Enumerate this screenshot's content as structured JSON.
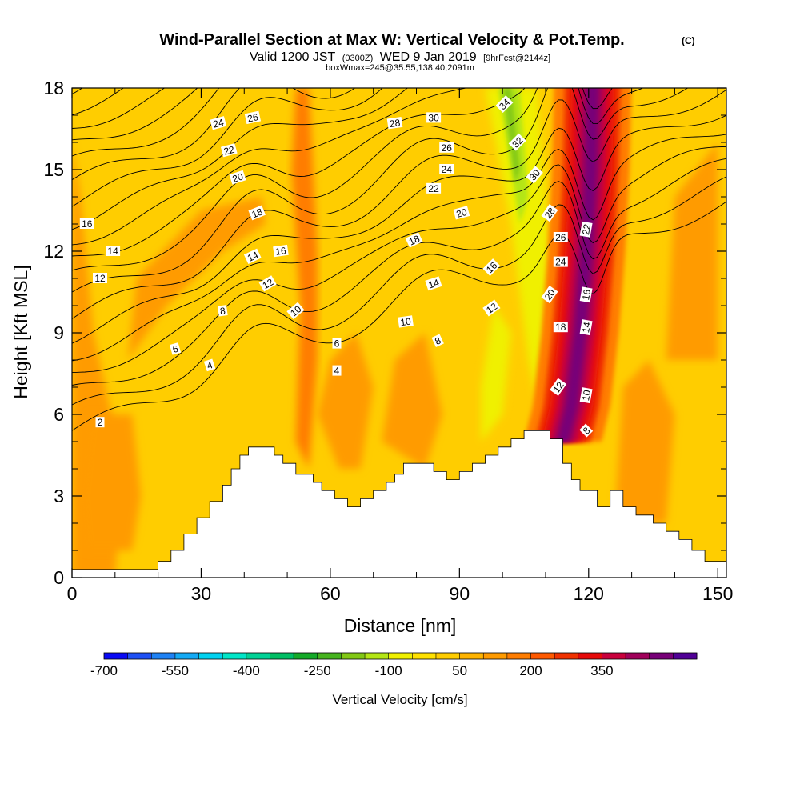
{
  "chart_data": {
    "type": "heatmap",
    "title": "Wind-Parallel Section at Max W: Vertical Velocity & Pot.Temp.",
    "copyright": "(C)",
    "subtitle": {
      "valid": "Valid 1200 JST",
      "utc": "(0300Z)",
      "date": "WED 9 Jan 2019",
      "fcst": "[9hrFcst@2144z]"
    },
    "box_info": "boxWmax=245@35.55,138.40,2091m",
    "xlabel": "Distance [nm]",
    "ylabel": "Height [Kft MSL]",
    "xlim": [
      0,
      152
    ],
    "ylim": [
      0,
      18
    ],
    "xticks": [
      0,
      30,
      60,
      90,
      120,
      150
    ],
    "yticks": [
      0,
      3,
      6,
      9,
      12,
      15,
      18
    ],
    "colorbar": {
      "label": "Vertical Velocity [cm/s]",
      "tick_labels": [
        "-700",
        "-550",
        "-400",
        "-250",
        "-100",
        "50",
        "200",
        "350"
      ],
      "colors": [
        "#0a0af5",
        "#1e50f5",
        "#1e82f5",
        "#14aaf5",
        "#00d2f0",
        "#00e6c8",
        "#00d296",
        "#00be64",
        "#14aa28",
        "#46b41e",
        "#82c814",
        "#b4e614",
        "#f0f000",
        "#ffe100",
        "#ffcd00",
        "#ffb400",
        "#ff9b00",
        "#ff7d00",
        "#ff5a00",
        "#f03200",
        "#e60a0a",
        "#c8003c",
        "#a0005a",
        "#780078",
        "#500096"
      ]
    },
    "terrain_height_kft": [
      [
        0,
        0.3
      ],
      [
        20,
        0.3
      ],
      [
        20,
        0.6
      ],
      [
        23,
        0.6
      ],
      [
        23,
        1.0
      ],
      [
        26,
        1.0
      ],
      [
        26,
        1.6
      ],
      [
        29,
        1.6
      ],
      [
        29,
        2.2
      ],
      [
        32,
        2.2
      ],
      [
        32,
        2.8
      ],
      [
        35,
        2.8
      ],
      [
        35,
        3.4
      ],
      [
        37,
        3.4
      ],
      [
        37,
        4.0
      ],
      [
        39,
        4.0
      ],
      [
        39,
        4.5
      ],
      [
        41,
        4.5
      ],
      [
        41,
        4.8
      ],
      [
        47,
        4.8
      ],
      [
        47,
        4.5
      ],
      [
        49,
        4.5
      ],
      [
        49,
        4.2
      ],
      [
        52,
        4.2
      ],
      [
        52,
        3.8
      ],
      [
        56,
        3.8
      ],
      [
        56,
        3.5
      ],
      [
        58,
        3.5
      ],
      [
        58,
        3.2
      ],
      [
        61,
        3.2
      ],
      [
        61,
        2.9
      ],
      [
        64,
        2.9
      ],
      [
        64,
        2.6
      ],
      [
        67,
        2.6
      ],
      [
        67,
        2.9
      ],
      [
        70,
        2.9
      ],
      [
        70,
        3.2
      ],
      [
        73,
        3.2
      ],
      [
        73,
        3.5
      ],
      [
        75,
        3.5
      ],
      [
        75,
        3.8
      ],
      [
        77,
        3.8
      ],
      [
        77,
        4.2
      ],
      [
        84,
        4.2
      ],
      [
        84,
        3.9
      ],
      [
        87,
        3.9
      ],
      [
        87,
        3.6
      ],
      [
        90,
        3.6
      ],
      [
        90,
        3.9
      ],
      [
        93,
        3.9
      ],
      [
        93,
        4.2
      ],
      [
        96,
        4.2
      ],
      [
        96,
        4.5
      ],
      [
        99,
        4.5
      ],
      [
        99,
        4.8
      ],
      [
        102,
        4.8
      ],
      [
        102,
        5.1
      ],
      [
        105,
        5.1
      ],
      [
        105,
        5.4
      ],
      [
        111,
        5.4
      ],
      [
        111,
        5.1
      ],
      [
        114,
        5.1
      ],
      [
        114,
        4.2
      ],
      [
        116,
        4.2
      ],
      [
        116,
        3.6
      ],
      [
        118,
        3.6
      ],
      [
        118,
        3.2
      ],
      [
        122,
        3.2
      ],
      [
        122,
        2.6
      ],
      [
        125,
        2.6
      ],
      [
        125,
        3.2
      ],
      [
        128,
        3.2
      ],
      [
        128,
        2.6
      ],
      [
        131,
        2.6
      ],
      [
        131,
        2.3
      ],
      [
        135,
        2.3
      ],
      [
        135,
        2.0
      ],
      [
        138,
        2.0
      ],
      [
        138,
        1.7
      ],
      [
        141,
        1.7
      ],
      [
        141,
        1.4
      ],
      [
        144,
        1.4
      ],
      [
        144,
        1.0
      ],
      [
        147,
        1.0
      ],
      [
        147,
        0.6
      ],
      [
        152,
        0.6
      ]
    ],
    "pot_temp_isentropes": {
      "start_left_kft": 5.4,
      "interval_kft": 0.7,
      "count": 19
    },
    "contour_labels": [
      {
        "text": "2",
        "x": 6.5,
        "y": 5.7,
        "rot": 0
      },
      {
        "text": "4",
        "x": 32,
        "y": 7.8,
        "rot": -18
      },
      {
        "text": "6",
        "x": 24,
        "y": 8.4,
        "rot": -16
      },
      {
        "text": "8",
        "x": 35,
        "y": 9.8,
        "rot": -8
      },
      {
        "text": "12",
        "x": 6.5,
        "y": 11.0,
        "rot": 0
      },
      {
        "text": "14",
        "x": 9.5,
        "y": 12.0,
        "rot": 0
      },
      {
        "text": "16",
        "x": 3.5,
        "y": 13.0,
        "rot": 0
      },
      {
        "text": "10",
        "x": 52,
        "y": 9.8,
        "rot": -40
      },
      {
        "text": "12",
        "x": 45.5,
        "y": 10.8,
        "rot": -30
      },
      {
        "text": "14",
        "x": 42,
        "y": 11.8,
        "rot": -25
      },
      {
        "text": "16",
        "x": 48.5,
        "y": 12.0,
        "rot": -8
      },
      {
        "text": "18",
        "x": 43,
        "y": 13.4,
        "rot": -22
      },
      {
        "text": "20",
        "x": 38.5,
        "y": 14.7,
        "rot": -18
      },
      {
        "text": "22",
        "x": 36.5,
        "y": 15.7,
        "rot": -15
      },
      {
        "text": "24",
        "x": 34,
        "y": 16.7,
        "rot": -15
      },
      {
        "text": "26",
        "x": 42,
        "y": 16.9,
        "rot": -12
      },
      {
        "text": "4",
        "x": 61.5,
        "y": 7.6,
        "rot": 0
      },
      {
        "text": "6",
        "x": 61.5,
        "y": 8.6,
        "rot": 0
      },
      {
        "text": "10",
        "x": 77.5,
        "y": 9.4,
        "rot": -8
      },
      {
        "text": "8",
        "x": 85,
        "y": 8.7,
        "rot": -25
      },
      {
        "text": "14",
        "x": 84,
        "y": 10.8,
        "rot": -18
      },
      {
        "text": "18",
        "x": 79.5,
        "y": 12.4,
        "rot": -25
      },
      {
        "text": "20",
        "x": 90.5,
        "y": 13.4,
        "rot": -15
      },
      {
        "text": "22",
        "x": 84,
        "y": 14.3,
        "rot": 0
      },
      {
        "text": "24",
        "x": 87,
        "y": 15.0,
        "rot": 0
      },
      {
        "text": "26",
        "x": 87,
        "y": 15.8,
        "rot": 0
      },
      {
        "text": "28",
        "x": 75,
        "y": 16.7,
        "rot": -8
      },
      {
        "text": "30",
        "x": 84,
        "y": 16.9,
        "rot": 0
      },
      {
        "text": "12",
        "x": 97.5,
        "y": 9.9,
        "rot": -35
      },
      {
        "text": "16",
        "x": 97.5,
        "y": 11.4,
        "rot": -45
      },
      {
        "text": "20",
        "x": 111,
        "y": 10.4,
        "rot": -55
      },
      {
        "text": "18",
        "x": 113.5,
        "y": 9.2,
        "rot": 0
      },
      {
        "text": "24",
        "x": 113.5,
        "y": 11.6,
        "rot": 0
      },
      {
        "text": "26",
        "x": 113.5,
        "y": 12.5,
        "rot": 0
      },
      {
        "text": "28",
        "x": 111,
        "y": 13.4,
        "rot": -55
      },
      {
        "text": "30",
        "x": 107.5,
        "y": 14.8,
        "rot": -50
      },
      {
        "text": "32",
        "x": 103.5,
        "y": 16.0,
        "rot": -45
      },
      {
        "text": "34",
        "x": 100.5,
        "y": 17.4,
        "rot": -45
      },
      {
        "text": "12",
        "x": 113,
        "y": 7.0,
        "rot": -55
      },
      {
        "text": "22",
        "x": 119.5,
        "y": 12.8,
        "rot": -80
      },
      {
        "text": "16",
        "x": 119.5,
        "y": 10.4,
        "rot": -80
      },
      {
        "text": "14",
        "x": 119.5,
        "y": 9.2,
        "rot": -80
      },
      {
        "text": "10",
        "x": 119.5,
        "y": 6.7,
        "rot": -80
      },
      {
        "text": "8",
        "x": 119.5,
        "y": 5.4,
        "rot": -45
      }
    ]
  }
}
